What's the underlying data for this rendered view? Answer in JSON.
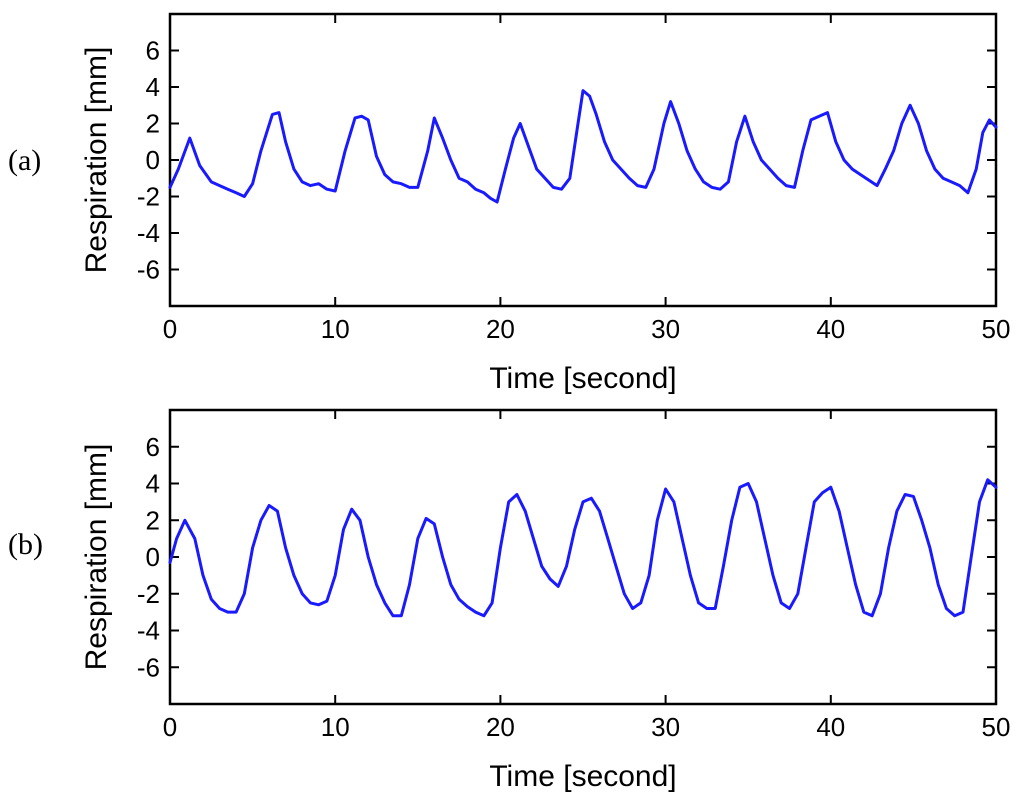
{
  "colors": {
    "series": "#1a1aff",
    "axis": "#000000",
    "background": "#ffffff"
  },
  "panels": [
    {
      "label": "(a)",
      "xlabel": "Time [second]",
      "ylabel": "Respiration [mm]"
    },
    {
      "label": "(b)",
      "xlabel": "Time [second]",
      "ylabel": "Respiration [mm]"
    }
  ],
  "chart_data": [
    {
      "type": "line",
      "panel_label": "(a)",
      "title": "",
      "xlabel": "Time [second]",
      "ylabel": "Respiration [mm]",
      "xlim": [
        0,
        50
      ],
      "ylim": [
        -8,
        8
      ],
      "xticks": [
        0,
        10,
        20,
        30,
        40,
        50
      ],
      "yticks": [
        -6,
        -4,
        -2,
        0,
        2,
        4,
        6
      ],
      "grid": false,
      "series": [
        {
          "x": [
            0,
            0.5,
            1.2,
            1.8,
            2.5,
            3.0,
            3.5,
            4.0,
            4.5,
            5.0,
            5.5,
            6.2,
            6.6,
            7.0,
            7.5,
            8.0,
            8.5,
            9.0,
            9.5,
            10.0,
            10.6,
            11.2,
            11.6,
            12.0,
            12.5,
            13.0,
            13.5,
            14.0,
            14.5,
            15.0,
            15.6,
            16.0,
            16.5,
            17.0,
            17.5,
            18.0,
            18.5,
            19.0,
            19.4,
            19.8,
            20.3,
            20.8,
            21.2,
            21.8,
            22.2,
            22.7,
            23.2,
            23.7,
            24.2,
            24.7,
            25.0,
            25.4,
            25.8,
            26.3,
            26.8,
            27.3,
            27.8,
            28.3,
            28.8,
            29.3,
            29.9,
            30.3,
            30.8,
            31.3,
            31.8,
            32.3,
            32.8,
            33.3,
            33.8,
            34.3,
            34.8,
            35.3,
            35.8,
            36.3,
            36.8,
            37.3,
            37.8,
            38.3,
            38.8,
            39.3,
            39.8,
            40.3,
            40.8,
            41.3,
            41.8,
            42.3,
            42.8,
            43.3,
            43.8,
            44.3,
            44.8,
            45.3,
            45.8,
            46.3,
            46.8,
            47.3,
            47.8,
            48.3,
            48.8,
            49.2,
            49.6,
            50.0
          ],
          "y": [
            -1.5,
            -0.5,
            1.2,
            -0.3,
            -1.2,
            -1.4,
            -1.6,
            -1.8,
            -2.0,
            -1.3,
            0.5,
            2.5,
            2.6,
            1.0,
            -0.5,
            -1.2,
            -1.4,
            -1.3,
            -1.6,
            -1.7,
            0.5,
            2.3,
            2.4,
            2.2,
            0.2,
            -0.8,
            -1.2,
            -1.3,
            -1.5,
            -1.5,
            0.5,
            2.3,
            1.2,
            0.0,
            -1.0,
            -1.2,
            -1.6,
            -1.8,
            -2.1,
            -2.3,
            -0.5,
            1.2,
            2.0,
            0.5,
            -0.5,
            -1.0,
            -1.5,
            -1.6,
            -1.0,
            2.0,
            3.8,
            3.5,
            2.5,
            1.0,
            0.0,
            -0.5,
            -1.0,
            -1.4,
            -1.5,
            -0.5,
            2.0,
            3.2,
            2.0,
            0.5,
            -0.5,
            -1.2,
            -1.5,
            -1.6,
            -1.2,
            1.0,
            2.4,
            1.0,
            0.0,
            -0.5,
            -1.0,
            -1.4,
            -1.5,
            0.5,
            2.2,
            2.4,
            2.6,
            1.0,
            0.0,
            -0.5,
            -0.8,
            -1.1,
            -1.4,
            -0.5,
            0.5,
            2.0,
            3.0,
            2.0,
            0.5,
            -0.5,
            -1.0,
            -1.2,
            -1.4,
            -1.8,
            -0.5,
            1.5,
            2.2,
            1.8
          ]
        }
      ]
    },
    {
      "type": "line",
      "panel_label": "(b)",
      "title": "",
      "xlabel": "Time [second]",
      "ylabel": "Respiration [mm]",
      "xlim": [
        0,
        50
      ],
      "ylim": [
        -8,
        8
      ],
      "xticks": [
        0,
        10,
        20,
        30,
        40,
        50
      ],
      "yticks": [
        -6,
        -4,
        -2,
        0,
        2,
        4,
        6
      ],
      "grid": false,
      "series": [
        {
          "x": [
            0,
            0.4,
            0.9,
            1.5,
            2.0,
            2.5,
            3.0,
            3.5,
            4.0,
            4.5,
            5.0,
            5.5,
            6.0,
            6.5,
            7.0,
            7.5,
            8.0,
            8.5,
            9.0,
            9.5,
            10.0,
            10.5,
            11.0,
            11.5,
            12.0,
            12.5,
            13.0,
            13.5,
            14.0,
            14.5,
            15.0,
            15.5,
            16.0,
            16.5,
            17.0,
            17.5,
            18.0,
            18.5,
            19.0,
            19.5,
            20.0,
            20.5,
            21.0,
            21.5,
            22.0,
            22.5,
            23.0,
            23.5,
            24.0,
            24.5,
            25.0,
            25.5,
            26.0,
            26.5,
            27.0,
            27.5,
            28.0,
            28.5,
            29.0,
            29.5,
            30.0,
            30.5,
            31.0,
            31.5,
            32.0,
            32.5,
            33.0,
            33.5,
            34.0,
            34.5,
            35.0,
            35.5,
            36.0,
            36.5,
            37.0,
            37.5,
            38.0,
            38.5,
            39.0,
            39.5,
            40.0,
            40.5,
            41.0,
            41.5,
            42.0,
            42.5,
            43.0,
            43.5,
            44.0,
            44.5,
            45.0,
            45.5,
            46.0,
            46.5,
            47.0,
            47.5,
            48.0,
            48.5,
            49.0,
            49.5,
            50.0
          ],
          "y": [
            -0.3,
            1.0,
            2.0,
            1.0,
            -1.0,
            -2.3,
            -2.8,
            -3.0,
            -3.0,
            -2.0,
            0.5,
            2.0,
            2.8,
            2.5,
            0.5,
            -1.0,
            -2.0,
            -2.5,
            -2.6,
            -2.4,
            -1.0,
            1.5,
            2.6,
            2.0,
            0.0,
            -1.5,
            -2.5,
            -3.2,
            -3.2,
            -1.5,
            1.0,
            2.1,
            1.8,
            0.0,
            -1.5,
            -2.3,
            -2.7,
            -3.0,
            -3.2,
            -2.5,
            0.5,
            3.0,
            3.4,
            2.5,
            1.0,
            -0.5,
            -1.2,
            -1.6,
            -0.5,
            1.5,
            3.0,
            3.2,
            2.5,
            1.0,
            -0.5,
            -2.0,
            -2.8,
            -2.5,
            -1.0,
            2.0,
            3.7,
            3.0,
            1.0,
            -1.0,
            -2.5,
            -2.8,
            -2.8,
            -0.5,
            2.0,
            3.8,
            4.0,
            3.0,
            1.0,
            -1.0,
            -2.5,
            -2.8,
            -2.0,
            0.5,
            3.0,
            3.5,
            3.8,
            2.5,
            0.5,
            -1.5,
            -3.0,
            -3.2,
            -2.0,
            0.5,
            2.5,
            3.4,
            3.3,
            2.0,
            0.5,
            -1.5,
            -2.8,
            -3.2,
            -3.0,
            0.0,
            3.0,
            4.2,
            3.8
          ]
        }
      ]
    }
  ]
}
